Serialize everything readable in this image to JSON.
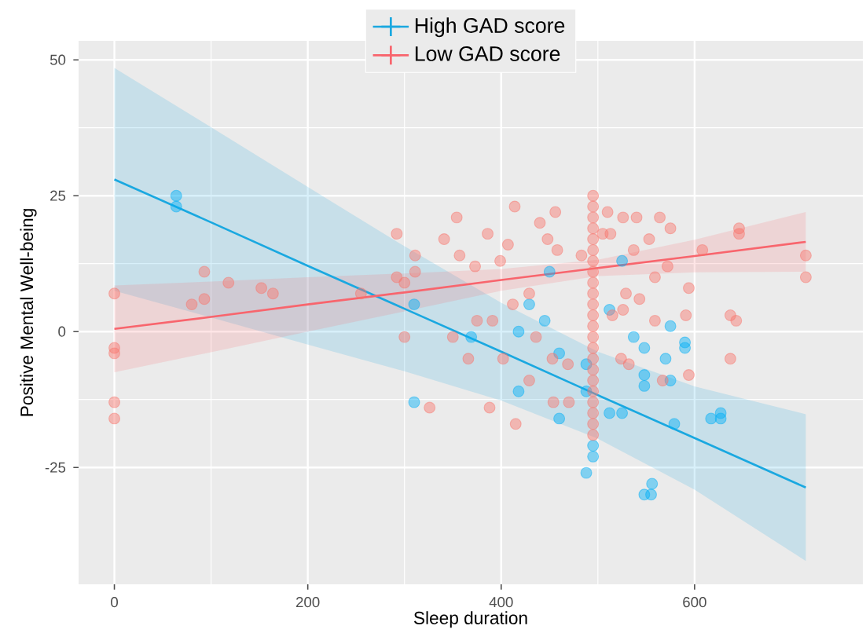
{
  "chart_data": {
    "type": "scatter",
    "xlabel": "Sleep duration",
    "ylabel": "Positive Mental Well-being",
    "xlim": [
      -37,
      774
    ],
    "ylim": [
      -46.5,
      53.5
    ],
    "xticks": [
      0,
      200,
      400,
      600
    ],
    "yticks": [
      -25,
      0,
      25,
      50
    ],
    "grid": true,
    "legend": "top",
    "series": [
      {
        "color": "#00b0f6",
        "marker": "circle",
        "x": [
          64,
          64,
          310,
          310,
          512,
          575,
          590,
          590,
          548,
          570,
          548,
          575,
          512,
          525,
          579,
          617,
          627,
          627,
          556,
          555,
          548,
          369,
          418,
          460,
          488,
          418,
          460,
          525,
          537,
          488,
          495,
          495,
          488,
          445,
          429,
          450,
          548
        ],
        "values": [
          25,
          23,
          -13,
          5,
          4,
          1,
          -2,
          -3,
          -3,
          -5,
          -8,
          -9,
          -15,
          -15,
          -17,
          -16,
          -16,
          -15,
          -28,
          -30,
          -30,
          -1,
          0,
          -4,
          -6,
          -11,
          -16,
          13,
          -1,
          -26,
          -23,
          -21,
          -11,
          2,
          5,
          11,
          -10
        ]
      },
      {
        "color": "#f8766d",
        "marker": "circle",
        "x": [
          0,
          0,
          0,
          0,
          0,
          80,
          93,
          93,
          118,
          152,
          164,
          255,
          292,
          292,
          300,
          311,
          311,
          300,
          326,
          354,
          341,
          414,
          386,
          407,
          373,
          399,
          357,
          440,
          456,
          448,
          429,
          412,
          391,
          375,
          350,
          366,
          402,
          436,
          453,
          469,
          429,
          454,
          470,
          415,
          388,
          510,
          526,
          540,
          564,
          575,
          513,
          537,
          553,
          608,
          646,
          646,
          715,
          715,
          594,
          572,
          559,
          543,
          529,
          515,
          526,
          559,
          591,
          637,
          643,
          637,
          594,
          524,
          532,
          567,
          505,
          458,
          483,
          495,
          495,
          495,
          495,
          495,
          495,
          495,
          495,
          495,
          495,
          495,
          495,
          495,
          495,
          495,
          495,
          495,
          495,
          495,
          495,
          495,
          495,
          495
        ],
        "values": [
          7,
          -3,
          -4,
          -13,
          -16,
          5,
          6,
          11,
          9,
          8,
          7,
          7,
          18,
          10,
          9,
          14,
          11,
          -1,
          -14,
          21,
          17,
          23,
          18,
          16,
          12,
          13,
          14,
          20,
          22,
          17,
          7,
          5,
          2,
          2,
          -1,
          -5,
          -5,
          -1,
          -5,
          -6,
          -9,
          -13,
          -13,
          -17,
          -14,
          22,
          21,
          21,
          21,
          19,
          18,
          15,
          17,
          15,
          19,
          18,
          14,
          10,
          8,
          12,
          10,
          6,
          7,
          3,
          4,
          2,
          3,
          3,
          2,
          -5,
          -8,
          -5,
          -6,
          -9,
          18,
          15,
          14,
          25,
          23,
          21,
          19,
          17,
          15,
          13,
          11,
          9,
          7,
          5,
          3,
          1,
          -1,
          -3,
          -5,
          -7,
          -9,
          -11,
          -13,
          -15,
          -17,
          -19
        ]
      },
      {
        "type": "line",
        "name": "High GAD score",
        "color": "#1aa8e0",
        "marker": "none",
        "x": [
          0,
          100,
          200,
          300,
          400,
          500,
          600,
          715
        ],
        "values": [
          28,
          20.1,
          12.1,
          4.2,
          -3.7,
          -11.7,
          -19.6,
          -28.7
        ],
        "lower": [
          7.5,
          2.6,
          -2.4,
          -7.3,
          -12.7,
          -19.7,
          -29.1,
          -42.2
        ],
        "upper": [
          48.5,
          37.6,
          26.6,
          15.7,
          5.3,
          -3.7,
          -10.1,
          -15.2
        ]
      },
      {
        "type": "line",
        "name": "Low GAD score",
        "color": "#f8656d",
        "marker": "none",
        "x": [
          0,
          100,
          200,
          300,
          400,
          500,
          600,
          715
        ],
        "values": [
          0.5,
          2.7,
          5,
          7.2,
          9.5,
          11.7,
          13.9,
          16.5
        ],
        "lower": [
          -7.5,
          -3.8,
          0,
          3.7,
          7.5,
          10.2,
          10.9,
          11
        ],
        "upper": [
          8.5,
          9.2,
          10,
          10.7,
          11.5,
          13.2,
          16.9,
          22
        ]
      }
    ]
  }
}
